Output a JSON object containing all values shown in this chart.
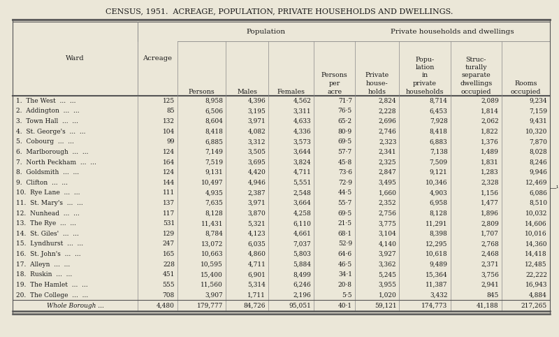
{
  "title": "CENSUS, 1951.  ACREAGE, POPULATION, PRIVATE HOUSEHOLDS AND DWELLINGS.",
  "bg_color": "#ebe7d8",
  "rows": [
    [
      "1.  The West",
      "125",
      "8,958",
      "4,396",
      "4,562",
      "71·7",
      "2,824",
      "8,714",
      "2,089",
      "9,234"
    ],
    [
      "2.  Addington",
      "85",
      "6,506",
      "3,195",
      "3,311",
      "76·5",
      "2,228",
      "6,453",
      "1,814",
      "7,159"
    ],
    [
      "3.  Town Hall",
      "132",
      "8,604",
      "3,971",
      "4,633",
      "65·2",
      "2,696",
      "7,928",
      "2,062",
      "9,431"
    ],
    [
      "4.  St. George's",
      "104",
      "8,418",
      "4,082",
      "4,336",
      "80·9",
      "2,746",
      "8,418",
      "1,822",
      "10,320"
    ],
    [
      "5.  Cobourg",
      "99",
      "6,885",
      "3,312",
      "3,573",
      "69·5",
      "2,323",
      "6,883",
      "1,376",
      "7,870"
    ],
    [
      "6.  Marlborough",
      "124",
      "7,149",
      "3,505",
      "3,644",
      "57·7",
      "2,341",
      "7,138",
      "1,489",
      "8,028"
    ],
    [
      "7.  North Peckham",
      "164",
      "7,519",
      "3,695",
      "3,824",
      "45·8",
      "2,325",
      "7,509",
      "1,831",
      "8,246"
    ],
    [
      "8.  Goldsmith",
      "124",
      "9,131",
      "4,420",
      "4,711",
      "73·6",
      "2,847",
      "9,121",
      "1,283",
      "9,946"
    ],
    [
      "9.  Clifton",
      "144",
      "10,497",
      "4,946",
      "5,551",
      "72·9",
      "3,495",
      "10,346",
      "2,328",
      "12,469"
    ],
    [
      "10.  Rye Lane",
      "111",
      "4,935",
      "2,387",
      "2,548",
      "44·5",
      "1,660",
      "4,903",
      "1,156",
      "6,086"
    ],
    [
      "11.  St. Mary's",
      "137",
      "7,635",
      "3,971",
      "3,664",
      "55·7",
      "2,352",
      "6,958",
      "1,477",
      "8,510"
    ],
    [
      "12.  Nunhead",
      "117",
      "8,128",
      "3,870",
      "4,258",
      "69·5",
      "2,756",
      "8,128",
      "1,896",
      "10,032"
    ],
    [
      "13.  The Rye",
      "531",
      "11,431",
      "5,321",
      "6,110",
      "21·5",
      "3,775",
      "11,291",
      "2,809",
      "14,606"
    ],
    [
      "14.  St. Giles'",
      "129",
      "8,784",
      "4,123",
      "4,661",
      "68·1",
      "3,104",
      "8,398",
      "1,707",
      "10,016"
    ],
    [
      "15.  Lyndhurst",
      "247",
      "13,072",
      "6,035",
      "7,037",
      "52·9",
      "4,140",
      "12,295",
      "2,768",
      "14,360"
    ],
    [
      "16.  St. John's",
      "165",
      "10,663",
      "4,860",
      "5,803",
      "64·6",
      "3,927",
      "10,618",
      "2,468",
      "14,418"
    ],
    [
      "17.  Alleyn",
      "228",
      "10,595",
      "4,711",
      "5,884",
      "46·5",
      "3,362",
      "9,489",
      "2,371",
      "12,485"
    ],
    [
      "18.  Ruskin",
      "451",
      "15,400",
      "6,901",
      "8,499",
      "34·1",
      "5,245",
      "15,364",
      "3,756",
      "22,222"
    ],
    [
      "19.  The Hamlet",
      "555",
      "11,560",
      "5,314",
      "6,246",
      "20·8",
      "3,955",
      "11,387",
      "2,941",
      "16,943"
    ],
    [
      "20.  The College",
      "708",
      "3,907",
      "1,711",
      "2,196",
      "5·5",
      "1,020",
      "3,432",
      "845",
      "4,884"
    ]
  ],
  "totals": [
    "Whole Borough ...",
    "4,480",
    "179,777",
    "84,726",
    "95,051",
    "40·1",
    "59,121",
    "174,773",
    "41,188",
    "217,265"
  ],
  "col_widths_rel": [
    2.2,
    0.7,
    0.85,
    0.75,
    0.8,
    0.72,
    0.78,
    0.9,
    0.9,
    0.85
  ],
  "ward_dots": [
    "...",
    "..."
  ]
}
